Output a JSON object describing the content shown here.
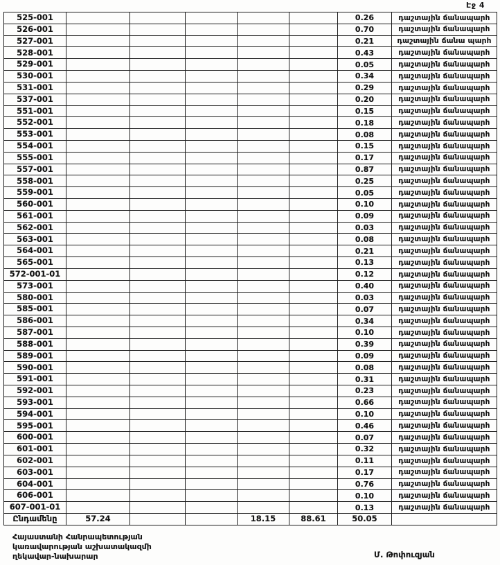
{
  "page": {
    "label": "Էջ 4"
  },
  "table": {
    "rows": [
      {
        "code": "525-001",
        "value": "0.26",
        "desc": "դաշտային ճանապարհ"
      },
      {
        "code": "526-001",
        "value": "0.70",
        "desc": "դաշտային ճանապարհ"
      },
      {
        "code": "527-001",
        "value": "0.21",
        "desc": "դաշտային ճանա պարհ"
      },
      {
        "code": "528-001",
        "value": "0.43",
        "desc": "դաշտային ճանապարհ"
      },
      {
        "code": "529-001",
        "value": "0.05",
        "desc": "դաշտային ճանապարհ"
      },
      {
        "code": "530-001",
        "value": "0.34",
        "desc": "դաշտային ճանապարհ"
      },
      {
        "code": "531-001",
        "value": "0.29",
        "desc": "դաշտային ճանապարհ"
      },
      {
        "code": "537-001",
        "value": "0.20",
        "desc": "դաշտային ճանապարհ"
      },
      {
        "code": "551-001",
        "value": "0.15",
        "desc": "դաշտային ճանապարհ"
      },
      {
        "code": "552-001",
        "value": "0.18",
        "desc": "դաշտային ճանապարհ"
      },
      {
        "code": "553-001",
        "value": "0.08",
        "desc": "դաշտային ճանապարհ"
      },
      {
        "code": "554-001",
        "value": "0.15",
        "desc": "դաշտային ճանապարհ"
      },
      {
        "code": "555-001",
        "value": "0.17",
        "desc": "դաշտային ճանապարհ"
      },
      {
        "code": "557-001",
        "value": "0.87",
        "desc": "դաշտային ճանապարհ"
      },
      {
        "code": "558-001",
        "value": "0.25",
        "desc": "դաշտային ճանապարհ"
      },
      {
        "code": "559-001",
        "value": "0.05",
        "desc": "դաշտային ճանապարհ"
      },
      {
        "code": "560-001",
        "value": "0.10",
        "desc": "դաշտային ճանապարհ"
      },
      {
        "code": "561-001",
        "value": "0.09",
        "desc": "դաշտային ճանապարհ"
      },
      {
        "code": "562-001",
        "value": "0.03",
        "desc": "դաշտային ճանապարհ"
      },
      {
        "code": "563-001",
        "value": "0.08",
        "desc": "դաշտային ճանապարհ"
      },
      {
        "code": "564-001",
        "value": "0.21",
        "desc": "դաշտային ճանապարհ"
      },
      {
        "code": "565-001",
        "value": "0.13",
        "desc": "դաշտային ճանապարհ"
      },
      {
        "code": "572-001-01",
        "value": "0.12",
        "desc": "դաշտային ճանապարհ"
      },
      {
        "code": "573-001",
        "value": "0.40",
        "desc": "դաշտային ճանապարհ"
      },
      {
        "code": "580-001",
        "value": "0.03",
        "desc": "դաշտային ճանապարհ"
      },
      {
        "code": "585-001",
        "value": "0.07",
        "desc": "դաշտային ճանապարհ"
      },
      {
        "code": "586-001",
        "value": "0.34",
        "desc": "դաշտային ճանապարհ"
      },
      {
        "code": "587-001",
        "value": "0.10",
        "desc": "դաշտային ճանապարհ"
      },
      {
        "code": "588-001",
        "value": "0.39",
        "desc": "դաշտային ճանապարհ"
      },
      {
        "code": "589-001",
        "value": "0.09",
        "desc": "դաշտային ճանապարհ"
      },
      {
        "code": "590-001",
        "value": "0.08",
        "desc": "դաշտային ճանապարհ"
      },
      {
        "code": "591-001",
        "value": "0.31",
        "desc": "դաշտային ճանապարհ"
      },
      {
        "code": "592-001",
        "value": "0.23",
        "desc": "դաշտային ճանապարհ"
      },
      {
        "code": "593-001",
        "value": "0.66",
        "desc": "դաշտային ճանապարհ"
      },
      {
        "code": "594-001",
        "value": "0.10",
        "desc": "դաշտային ճանապարհ"
      },
      {
        "code": "595-001",
        "value": "0.46",
        "desc": "դաշտային ճանապարհ"
      },
      {
        "code": "600-001",
        "value": "0.07",
        "desc": "դաշտային ճանապարհ"
      },
      {
        "code": "601-001",
        "value": "0.32",
        "desc": "դաշտային ճանապարհ"
      },
      {
        "code": "602-001",
        "value": "0.11",
        "desc": "դաշտային ճանապարհ"
      },
      {
        "code": "603-001",
        "value": "0.17",
        "desc": "դաշտային ճանապարհ"
      },
      {
        "code": "604-001",
        "value": "0.76",
        "desc": "դաշտային ճանապարհ"
      },
      {
        "code": "606-001",
        "value": "0.10",
        "desc": "դաշտային ճանապարհ"
      },
      {
        "code": "607-001-01",
        "value": "0.13",
        "desc": "դաշտային ճանապարհ"
      }
    ],
    "total": {
      "label": "Ընդամենը",
      "col2": "57.24",
      "col5": "18.15",
      "col6": "88.61",
      "col7": "50.05"
    }
  },
  "footer": {
    "left_lines": [
      "Հայաստանի Հանրապետության",
      "կառավարության աշխատակազմի",
      "ղեկավար-նախարար"
    ],
    "signature": "Մ. Թոփուզյան"
  }
}
